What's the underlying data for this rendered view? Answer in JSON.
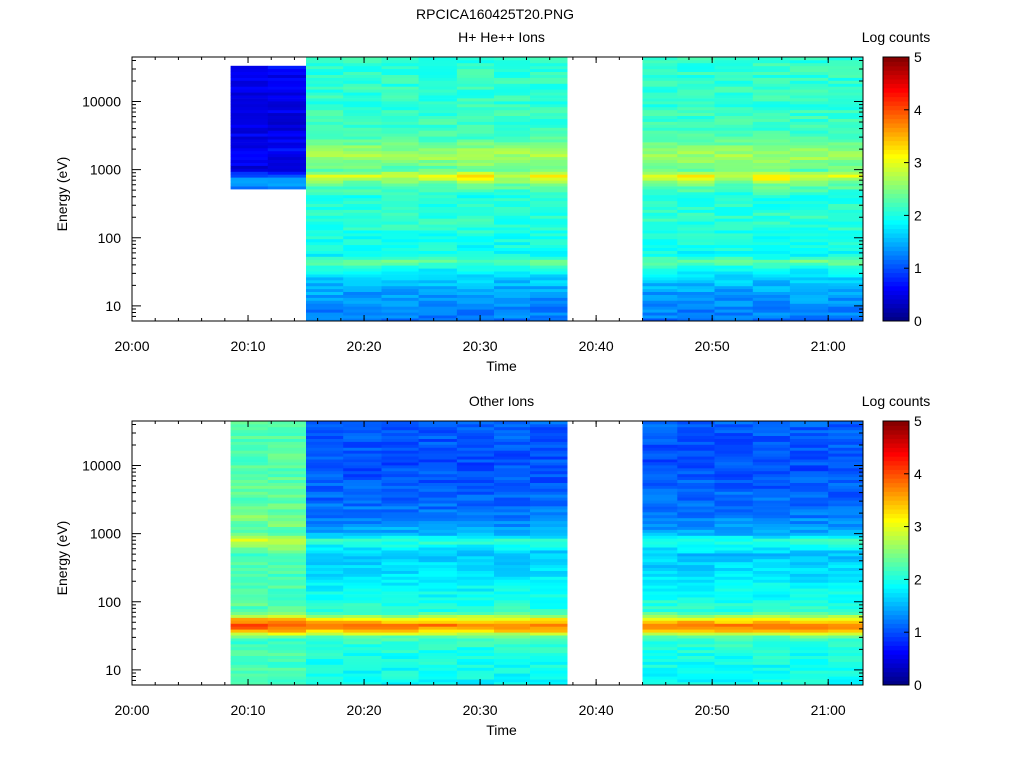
{
  "figure": {
    "title": "RPCICA160425T20.PNG"
  },
  "chart_data": [
    {
      "type": "heatmap",
      "title": "H+ He++ Ions",
      "xlabel": "Time",
      "ylabel": "Energy (eV)",
      "colorbar_label": "Log counts",
      "x_ticks": [
        "20:00",
        "20:10",
        "20:20",
        "20:30",
        "20:40",
        "20:50",
        "21:00"
      ],
      "y_ticks": [
        "10",
        "100",
        "1000",
        "10000"
      ],
      "y_scale": "log",
      "ylim": [
        6,
        45000
      ],
      "xlim": [
        "20:00",
        "21:03"
      ],
      "colorbar_range": [
        0,
        5
      ],
      "colorbar_ticks": [
        "0",
        "1",
        "2",
        "3",
        "4",
        "5"
      ],
      "colormap": "jet",
      "time_blocks": [
        {
          "start": "20:08.5",
          "end": "20:11.7",
          "profile": "hi_low",
          "energy_range": [
            500,
            35000
          ]
        },
        {
          "start": "20:11.7",
          "end": "20:15",
          "profile": "hi_low",
          "energy_range": [
            500,
            35000
          ]
        },
        {
          "start": "20:15",
          "end": "20:18.2",
          "profile": "hi_main"
        },
        {
          "start": "20:18.2",
          "end": "20:21.5",
          "profile": "hi_main"
        },
        {
          "start": "20:21.5",
          "end": "20:24.7",
          "profile": "hi_main"
        },
        {
          "start": "20:24.7",
          "end": "20:28",
          "profile": "hi_main"
        },
        {
          "start": "20:28",
          "end": "20:31.2",
          "profile": "hi_peak"
        },
        {
          "start": "20:31.2",
          "end": "20:34.3",
          "profile": "hi_main"
        },
        {
          "start": "20:34.3",
          "end": "20:37.5",
          "profile": "hi_peak"
        },
        {
          "start": "20:44",
          "end": "20:47",
          "profile": "hi_main"
        },
        {
          "start": "20:47",
          "end": "20:50.2",
          "profile": "hi_peak"
        },
        {
          "start": "20:50.2",
          "end": "20:53.5",
          "profile": "hi_main"
        },
        {
          "start": "20:53.5",
          "end": "20:56.7",
          "profile": "hi_peak"
        },
        {
          "start": "20:56.7",
          "end": "21:00",
          "profile": "hi_main"
        },
        {
          "start": "21:00",
          "end": "21:03",
          "profile": "hi_main"
        }
      ],
      "profiles": {
        "hi_low": [
          [
            500,
            1.1
          ],
          [
            700,
            1.5
          ],
          [
            1000,
            0.5
          ],
          [
            2000,
            0.6
          ],
          [
            5000,
            0.5
          ],
          [
            10000,
            0.55
          ],
          [
            35000,
            0.6
          ]
        ],
        "hi_main": [
          [
            6,
            1.2
          ],
          [
            10,
            1.3
          ],
          [
            20,
            1.5
          ],
          [
            35,
            1.9
          ],
          [
            45,
            2.4
          ],
          [
            55,
            1.9
          ],
          [
            100,
            2.0
          ],
          [
            200,
            2.1
          ],
          [
            400,
            2.0
          ],
          [
            650,
            2.4
          ],
          [
            800,
            3.0
          ],
          [
            1000,
            2.3
          ],
          [
            1700,
            2.7
          ],
          [
            3000,
            2.2
          ],
          [
            10000,
            2.1
          ],
          [
            45000,
            2.1
          ]
        ],
        "hi_peak": [
          [
            6,
            1.2
          ],
          [
            10,
            1.3
          ],
          [
            20,
            1.5
          ],
          [
            35,
            1.9
          ],
          [
            45,
            2.4
          ],
          [
            55,
            1.9
          ],
          [
            100,
            2.0
          ],
          [
            200,
            2.1
          ],
          [
            400,
            2.0
          ],
          [
            650,
            2.5
          ],
          [
            800,
            3.4
          ],
          [
            1000,
            2.4
          ],
          [
            1700,
            2.7
          ],
          [
            3000,
            2.2
          ],
          [
            10000,
            2.1
          ],
          [
            45000,
            2.1
          ]
        ]
      }
    },
    {
      "type": "heatmap",
      "title": "Other Ions",
      "xlabel": "Time",
      "ylabel": "Energy (eV)",
      "colorbar_label": "Log counts",
      "x_ticks": [
        "20:00",
        "20:10",
        "20:20",
        "20:30",
        "20:40",
        "20:50",
        "21:00"
      ],
      "y_ticks": [
        "10",
        "100",
        "1000",
        "10000"
      ],
      "y_scale": "log",
      "ylim": [
        6,
        45000
      ],
      "xlim": [
        "20:00",
        "21:03"
      ],
      "colorbar_range": [
        0,
        5
      ],
      "colorbar_ticks": [
        "0",
        "1",
        "2",
        "3",
        "4",
        "5"
      ],
      "colormap": "jet",
      "time_blocks": [
        {
          "start": "20:08.5",
          "end": "20:11.7",
          "profile": "ot_early"
        },
        {
          "start": "20:11.7",
          "end": "20:15",
          "profile": "ot_early"
        },
        {
          "start": "20:15",
          "end": "20:18.2",
          "profile": "ot_main"
        },
        {
          "start": "20:18.2",
          "end": "20:21.5",
          "profile": "ot_main"
        },
        {
          "start": "20:21.5",
          "end": "20:24.7",
          "profile": "ot_main"
        },
        {
          "start": "20:24.7",
          "end": "20:28",
          "profile": "ot_main"
        },
        {
          "start": "20:28",
          "end": "20:31.2",
          "profile": "ot_main"
        },
        {
          "start": "20:31.2",
          "end": "20:34.3",
          "profile": "ot_main"
        },
        {
          "start": "20:34.3",
          "end": "20:37.5",
          "profile": "ot_main"
        },
        {
          "start": "20:44",
          "end": "20:47",
          "profile": "ot_main"
        },
        {
          "start": "20:47",
          "end": "20:50.2",
          "profile": "ot_main"
        },
        {
          "start": "20:50.2",
          "end": "20:53.5",
          "profile": "ot_main"
        },
        {
          "start": "20:53.5",
          "end": "20:56.7",
          "profile": "ot_main"
        },
        {
          "start": "20:56.7",
          "end": "21:00",
          "profile": "ot_main"
        },
        {
          "start": "21:00",
          "end": "21:03",
          "profile": "ot_main"
        }
      ],
      "profiles": {
        "ot_early": [
          [
            6,
            2.2
          ],
          [
            30,
            2.2
          ],
          [
            38,
            3.6
          ],
          [
            45,
            4.0
          ],
          [
            55,
            3.5
          ],
          [
            70,
            2.3
          ],
          [
            500,
            2.2
          ],
          [
            700,
            2.7
          ],
          [
            800,
            3.0
          ],
          [
            1000,
            2.3
          ],
          [
            1700,
            2.5
          ],
          [
            3000,
            2.3
          ],
          [
            45000,
            2.3
          ]
        ],
        "ot_main": [
          [
            6,
            1.9
          ],
          [
            20,
            2.0
          ],
          [
            30,
            2.2
          ],
          [
            38,
            3.4
          ],
          [
            45,
            3.8
          ],
          [
            55,
            3.2
          ],
          [
            70,
            2.1
          ],
          [
            200,
            1.8
          ],
          [
            500,
            1.6
          ],
          [
            800,
            2.1
          ],
          [
            1000,
            1.5
          ],
          [
            2000,
            1.2
          ],
          [
            10000,
            1.0
          ],
          [
            45000,
            1.1
          ]
        ]
      }
    }
  ]
}
